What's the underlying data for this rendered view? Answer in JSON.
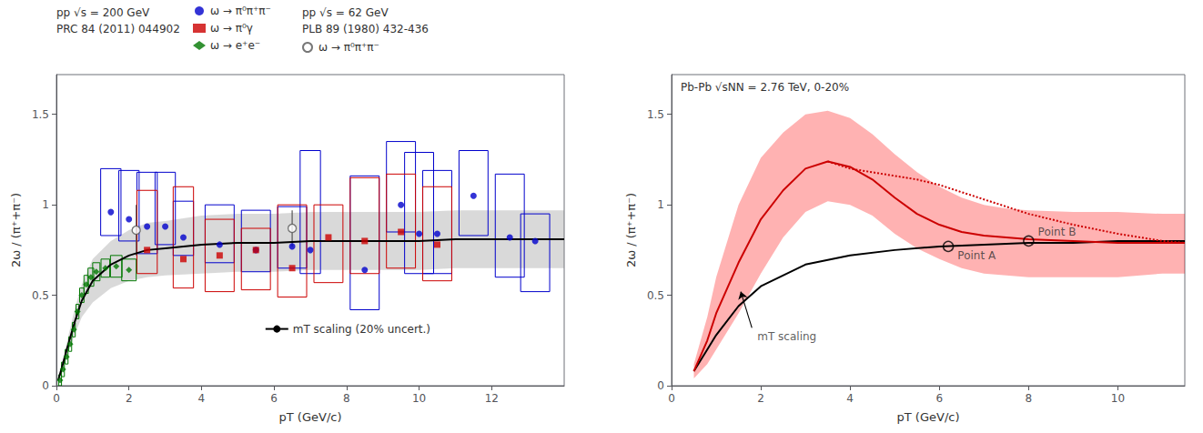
{
  "chart_data": [
    {
      "type": "scatter",
      "xlabel": "pT (GeV/c)",
      "ylabel": "2ω / (π⁺+π⁻)",
      "xlim": [
        0,
        14
      ],
      "ylim": [
        0,
        1.72
      ],
      "xticks": [
        0,
        2,
        4,
        6,
        8,
        10,
        12
      ],
      "yticks": [
        0,
        0.5,
        1.0,
        1.5
      ],
      "grid": false,
      "legend": "top",
      "annotations": [
        {
          "text": "pp √s = 200 GeV"
        },
        {
          "text": "PRC 84 (2011) 044902"
        },
        {
          "text": "pp √s = 62 GeV"
        },
        {
          "text": "PLB 89 (1980) 432-436"
        }
      ],
      "series": [
        {
          "type": "band",
          "color": "#808080",
          "x": [
            0.05,
            0.15,
            0.3,
            0.5,
            0.7,
            1.0,
            1.5,
            2.0,
            2.5,
            3.0,
            4.0,
            5.0,
            6.0,
            7.0,
            8.0,
            9.0,
            10.0,
            11.0,
            12.0,
            13.0,
            14.0
          ],
          "lo": [
            0.024,
            0.08,
            0.17,
            0.28,
            0.38,
            0.46,
            0.54,
            0.58,
            0.6,
            0.61,
            0.62,
            0.63,
            0.63,
            0.64,
            0.64,
            0.64,
            0.64,
            0.65,
            0.65,
            0.65,
            0.65
          ],
          "hi": [
            0.036,
            0.12,
            0.25,
            0.42,
            0.56,
            0.7,
            0.8,
            0.86,
            0.9,
            0.91,
            0.94,
            0.95,
            0.95,
            0.96,
            0.96,
            0.96,
            0.96,
            0.97,
            0.97,
            0.97,
            0.97
          ]
        },
        {
          "name": "mT scaling (20% uncert.)",
          "type": "line",
          "line_style": "solid",
          "color": "#000000",
          "x": [
            0.05,
            0.15,
            0.3,
            0.5,
            0.7,
            1.0,
            1.5,
            2.0,
            2.5,
            3.0,
            4.0,
            5.0,
            6.0,
            7.0,
            8.0,
            9.0,
            10.0,
            11.0,
            12.0,
            13.0,
            14.0
          ],
          "values": [
            0.03,
            0.1,
            0.21,
            0.35,
            0.47,
            0.58,
            0.67,
            0.72,
            0.75,
            0.76,
            0.78,
            0.79,
            0.79,
            0.8,
            0.8,
            0.8,
            0.8,
            0.81,
            0.81,
            0.81,
            0.81
          ]
        },
        {
          "name": "ω → π⁰π⁺π⁻",
          "marker": "circle",
          "color": "#0000cc",
          "x": [
            1.5,
            2.0,
            2.5,
            3.0,
            3.5,
            4.5,
            5.5,
            6.5,
            7.0,
            8.5,
            9.5,
            10.0,
            10.5,
            11.5,
            12.5,
            13.2
          ],
          "values": [
            0.96,
            0.92,
            0.88,
            0.88,
            0.82,
            0.78,
            0.75,
            0.77,
            0.75,
            0.64,
            1.0,
            0.84,
            0.84,
            1.05,
            0.82,
            0.8
          ],
          "yerr_lo": [
            0.13,
            0.12,
            0.15,
            0.1,
            0.1,
            0.1,
            0.12,
            0.12,
            0.13,
            0.22,
            0.15,
            0.22,
            0.22,
            0.22,
            0.22,
            0.28
          ],
          "yerr_hi": [
            0.24,
            0.27,
            0.3,
            0.3,
            0.2,
            0.22,
            0.22,
            0.22,
            0.55,
            0.52,
            0.35,
            0.45,
            0.35,
            0.25,
            0.35,
            0.15
          ],
          "xerr": [
            0.28,
            0.28,
            0.28,
            0.28,
            0.28,
            0.4,
            0.4,
            0.4,
            0.28,
            0.4,
            0.4,
            0.4,
            0.4,
            0.4,
            0.4,
            0.4
          ]
        },
        {
          "name": "ω → π⁰γ",
          "marker": "square",
          "color": "#cc0000",
          "x": [
            2.5,
            3.5,
            4.5,
            5.5,
            6.5,
            7.5,
            8.5,
            9.5,
            10.5
          ],
          "values": [
            0.75,
            0.7,
            0.72,
            0.75,
            0.65,
            0.82,
            0.8,
            0.85,
            0.78
          ],
          "yerr_lo": [
            0.13,
            0.16,
            0.2,
            0.22,
            0.16,
            0.25,
            0.18,
            0.2,
            0.2
          ],
          "yerr_hi": [
            0.33,
            0.4,
            0.2,
            0.12,
            0.35,
            0.18,
            0.35,
            0.32,
            0.32
          ],
          "xerr": [
            0.28,
            0.28,
            0.4,
            0.4,
            0.4,
            0.4,
            0.4,
            0.4,
            0.4
          ]
        },
        {
          "name": "ω → e⁺e⁻",
          "marker": "diamond",
          "color": "#007700",
          "x": [
            0.1,
            0.18,
            0.28,
            0.38,
            0.48,
            0.58,
            0.7,
            0.82,
            0.95,
            1.1,
            1.35,
            1.65,
            2.0
          ],
          "values": [
            0.03,
            0.09,
            0.16,
            0.23,
            0.31,
            0.41,
            0.5,
            0.56,
            0.6,
            0.63,
            0.65,
            0.66,
            0.64
          ],
          "yerr": [
            0.03,
            0.04,
            0.04,
            0.04,
            0.04,
            0.04,
            0.04,
            0.05,
            0.05,
            0.05,
            0.05,
            0.06,
            0.06
          ],
          "xerr": [
            0.04,
            0.04,
            0.04,
            0.04,
            0.04,
            0.04,
            0.06,
            0.06,
            0.08,
            0.1,
            0.12,
            0.16,
            0.2
          ]
        },
        {
          "name": "ω → π⁰π⁺π⁻",
          "marker": "open circle",
          "color": "#555555",
          "x": [
            2.2,
            6.5
          ],
          "values": [
            0.86,
            0.87
          ],
          "yerr": [
            0.14,
            0.1
          ]
        }
      ]
    },
    {
      "type": "line",
      "xlabel": "pT (GeV/c)",
      "ylabel": "2ω / (π⁺+π⁻)",
      "xlim": [
        0,
        11.5
      ],
      "ylim": [
        0,
        1.72
      ],
      "xticks": [
        0,
        2,
        4,
        6,
        8,
        10
      ],
      "yticks": [
        0,
        0.5,
        1.0,
        1.5
      ],
      "grid": false,
      "annotations": [
        {
          "text": "Pb-Pb √sNN = 2.76 TeV, 0-20%"
        },
        {
          "text": "Point A",
          "x": 6.2,
          "y": 0.77,
          "marker": "open circle"
        },
        {
          "text": "Point B",
          "x": 8.0,
          "y": 0.8,
          "marker": "open circle"
        },
        {
          "text": "mT scaling",
          "x": 1.8,
          "y": 0.32,
          "arrow_x": 1.55,
          "arrow_y": 0.52
        }
      ],
      "series": [
        {
          "type": "band",
          "color": "#ff0000",
          "x": [
            0.5,
            0.8,
            1.0,
            1.5,
            2.0,
            2.5,
            3.0,
            3.5,
            4.0,
            4.5,
            5.0,
            5.5,
            6.0,
            6.5,
            7.0,
            7.5,
            8.0,
            9.0,
            10.0,
            11.0,
            11.5
          ],
          "lo": [
            0.04,
            0.12,
            0.2,
            0.4,
            0.62,
            0.82,
            0.96,
            1.02,
            1.0,
            0.94,
            0.84,
            0.76,
            0.7,
            0.65,
            0.62,
            0.61,
            0.6,
            0.6,
            0.6,
            0.62,
            0.62
          ],
          "hi": [
            0.12,
            0.38,
            0.6,
            1.0,
            1.26,
            1.4,
            1.5,
            1.52,
            1.48,
            1.39,
            1.28,
            1.18,
            1.1,
            1.04,
            1.0,
            0.98,
            0.97,
            0.96,
            0.96,
            0.95,
            0.95
          ]
        },
        {
          "line_style": "solid",
          "color": "#000000",
          "x": [
            0.5,
            0.8,
            1.0,
            1.5,
            2.0,
            3.0,
            4.0,
            5.0,
            6.0,
            7.0,
            8.0,
            9.0,
            10.0,
            11.0,
            11.5
          ],
          "values": [
            0.08,
            0.2,
            0.28,
            0.44,
            0.55,
            0.67,
            0.72,
            0.75,
            0.77,
            0.78,
            0.79,
            0.79,
            0.8,
            0.8,
            0.8
          ]
        },
        {
          "line_style": "solid",
          "color": "#cc0000",
          "x": [
            0.5,
            0.8,
            1.0,
            1.5,
            2.0,
            2.5,
            3.0,
            3.5,
            4.0,
            4.5,
            5.0,
            5.5,
            6.0,
            6.5,
            7.0,
            7.5,
            8.0,
            9.0,
            10.0,
            11.0,
            11.5
          ],
          "values": [
            0.08,
            0.25,
            0.4,
            0.68,
            0.92,
            1.08,
            1.2,
            1.24,
            1.21,
            1.14,
            1.04,
            0.95,
            0.89,
            0.85,
            0.83,
            0.82,
            0.81,
            0.8,
            0.79,
            0.79,
            0.79
          ]
        },
        {
          "line_style": "dotted",
          "color": "#cc0000",
          "x": [
            3.5,
            4.0,
            4.5,
            5.0,
            5.5,
            6.0,
            6.5,
            7.0,
            7.5,
            8.0,
            9.0,
            10.0,
            11.0,
            11.5
          ],
          "values": [
            1.24,
            1.2,
            1.18,
            1.16,
            1.14,
            1.11,
            1.07,
            1.03,
            0.99,
            0.95,
            0.89,
            0.84,
            0.8,
            0.79
          ]
        }
      ]
    }
  ]
}
